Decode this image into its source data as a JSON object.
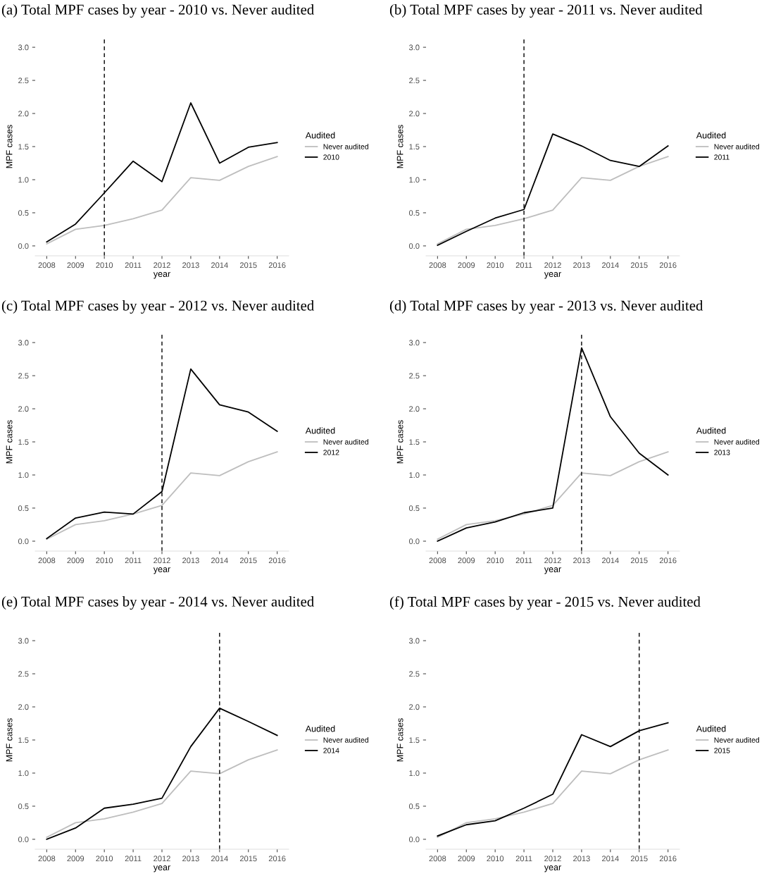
{
  "chart_data": [
    {
      "type": "line",
      "title": "(a) Total MPF cases by year - 2010 vs. Never audited",
      "xlabel": "year",
      "ylabel": "MPF cases",
      "legend_title": "Audited",
      "legend": "right",
      "grid": false,
      "x": [
        2008,
        2009,
        2010,
        2011,
        2012,
        2013,
        2014,
        2015,
        2016
      ],
      "xlim": [
        2007.6,
        2016.4
      ],
      "xticks": [
        2008,
        2009,
        2010,
        2011,
        2012,
        2013,
        2014,
        2015,
        2016
      ],
      "ylim": [
        -0.15,
        3.15
      ],
      "yticks": [
        {
          "value": 0,
          "label": "0.0"
        },
        0.5,
        {
          "value": 1,
          "label": "1.0"
        },
        1.5,
        {
          "value": 2,
          "label": "2.0"
        },
        2.5,
        {
          "value": 3,
          "label": "3.0"
        }
      ],
      "ref_lines": [
        {
          "axis": "x",
          "value": 2010,
          "color": "#000000",
          "line_style": "dashed"
        }
      ],
      "series": [
        {
          "name": "Never audited",
          "color": "#bebebe",
          "values": [
            0.03,
            0.25,
            0.31,
            0.41,
            0.54,
            1.03,
            0.99,
            1.2,
            1.35
          ]
        },
        {
          "name": "2010",
          "color": "#000000",
          "values": [
            0.06,
            0.33,
            0.8,
            1.28,
            0.97,
            2.16,
            1.25,
            1.49,
            1.56
          ]
        }
      ]
    },
    {
      "type": "line",
      "title": "(b) Total MPF cases by year - 2011 vs. Never audited",
      "xlabel": "year",
      "ylabel": "MPF cases",
      "legend_title": "Audited",
      "legend": "right",
      "grid": false,
      "x": [
        2008,
        2009,
        2010,
        2011,
        2012,
        2013,
        2014,
        2015,
        2016
      ],
      "xlim": [
        2007.6,
        2016.4
      ],
      "xticks": [
        2008,
        2009,
        2010,
        2011,
        2012,
        2013,
        2014,
        2015,
        2016
      ],
      "ylim": [
        -0.15,
        3.15
      ],
      "yticks": [
        {
          "value": 0,
          "label": "0.0"
        },
        0.5,
        {
          "value": 1,
          "label": "1.0"
        },
        1.5,
        {
          "value": 2,
          "label": "2.0"
        },
        2.5,
        {
          "value": 3,
          "label": "3.0"
        }
      ],
      "ref_lines": [
        {
          "axis": "x",
          "value": 2011,
          "color": "#000000",
          "line_style": "dashed"
        }
      ],
      "series": [
        {
          "name": "Never audited",
          "color": "#bebebe",
          "values": [
            0.03,
            0.25,
            0.31,
            0.41,
            0.54,
            1.03,
            0.99,
            1.2,
            1.35
          ]
        },
        {
          "name": "2011",
          "color": "#000000",
          "values": [
            0.01,
            0.22,
            0.42,
            0.55,
            1.69,
            1.51,
            1.29,
            1.2,
            1.51
          ]
        }
      ]
    },
    {
      "type": "line",
      "title": "(c) Total MPF cases by year - 2012 vs. Never audited",
      "xlabel": "year",
      "ylabel": "MPF cases",
      "legend_title": "Audited",
      "legend": "right",
      "grid": false,
      "x": [
        2008,
        2009,
        2010,
        2011,
        2012,
        2013,
        2014,
        2015,
        2016
      ],
      "xlim": [
        2007.6,
        2016.4
      ],
      "xticks": [
        2008,
        2009,
        2010,
        2011,
        2012,
        2013,
        2014,
        2015,
        2016
      ],
      "ylim": [
        -0.15,
        3.15
      ],
      "yticks": [
        {
          "value": 0,
          "label": "0.0"
        },
        0.5,
        {
          "value": 1,
          "label": "1.0"
        },
        1.5,
        {
          "value": 2,
          "label": "2.0"
        },
        2.5,
        {
          "value": 3,
          "label": "3.0"
        }
      ],
      "ref_lines": [
        {
          "axis": "x",
          "value": 2012,
          "color": "#000000",
          "line_style": "dashed"
        }
      ],
      "series": [
        {
          "name": "Never audited",
          "color": "#bebebe",
          "values": [
            0.03,
            0.25,
            0.31,
            0.41,
            0.54,
            1.03,
            0.99,
            1.2,
            1.35
          ]
        },
        {
          "name": "2012",
          "color": "#000000",
          "values": [
            0.04,
            0.35,
            0.44,
            0.41,
            0.75,
            2.6,
            2.06,
            1.95,
            1.66
          ]
        }
      ]
    },
    {
      "type": "line",
      "title": "(d) Total MPF cases by year - 2013 vs. Never audited",
      "xlabel": "year",
      "ylabel": "MPF cases",
      "legend_title": "Audited",
      "legend": "right",
      "grid": false,
      "x": [
        2008,
        2009,
        2010,
        2011,
        2012,
        2013,
        2014,
        2015,
        2016
      ],
      "xlim": [
        2007.6,
        2016.4
      ],
      "xticks": [
        2008,
        2009,
        2010,
        2011,
        2012,
        2013,
        2014,
        2015,
        2016
      ],
      "ylim": [
        -0.15,
        3.15
      ],
      "yticks": [
        {
          "value": 0,
          "label": "0.0"
        },
        0.5,
        {
          "value": 1,
          "label": "1.0"
        },
        1.5,
        {
          "value": 2,
          "label": "2.0"
        },
        2.5,
        {
          "value": 3,
          "label": "3.0"
        }
      ],
      "ref_lines": [
        {
          "axis": "x",
          "value": 2013,
          "color": "#000000",
          "line_style": "dashed"
        }
      ],
      "series": [
        {
          "name": "Never audited",
          "color": "#bebebe",
          "values": [
            0.03,
            0.25,
            0.31,
            0.41,
            0.54,
            1.03,
            0.99,
            1.2,
            1.35
          ]
        },
        {
          "name": "2013",
          "color": "#000000",
          "values": [
            0.0,
            0.2,
            0.29,
            0.43,
            0.5,
            2.92,
            1.88,
            1.33,
            1.0
          ]
        }
      ]
    },
    {
      "type": "line",
      "title": "(e) Total MPF cases by year - 2014 vs. Never audited",
      "xlabel": "year",
      "ylabel": "MPF cases",
      "legend_title": "Audited",
      "legend": "right",
      "grid": false,
      "x": [
        2008,
        2009,
        2010,
        2011,
        2012,
        2013,
        2014,
        2015,
        2016
      ],
      "xlim": [
        2007.6,
        2016.4
      ],
      "xticks": [
        2008,
        2009,
        2010,
        2011,
        2012,
        2013,
        2014,
        2015,
        2016
      ],
      "ylim": [
        -0.15,
        3.15
      ],
      "yticks": [
        {
          "value": 0,
          "label": "0.0"
        },
        0.5,
        {
          "value": 1,
          "label": "1.0"
        },
        1.5,
        {
          "value": 2,
          "label": "2.0"
        },
        2.5,
        {
          "value": 3,
          "label": "3.0"
        }
      ],
      "ref_lines": [
        {
          "axis": "x",
          "value": 2014,
          "color": "#000000",
          "line_style": "dashed"
        }
      ],
      "series": [
        {
          "name": "Never audited",
          "color": "#bebebe",
          "values": [
            0.03,
            0.25,
            0.31,
            0.41,
            0.54,
            1.03,
            0.99,
            1.2,
            1.35
          ]
        },
        {
          "name": "2014",
          "color": "#000000",
          "values": [
            0.0,
            0.17,
            0.47,
            0.53,
            0.62,
            1.4,
            1.98,
            1.78,
            1.57
          ]
        }
      ]
    },
    {
      "type": "line",
      "title": "(f) Total MPF cases by year - 2015 vs. Never audited",
      "xlabel": "year",
      "ylabel": "MPF cases",
      "legend_title": "Audited",
      "legend": "right",
      "grid": false,
      "x": [
        2008,
        2009,
        2010,
        2011,
        2012,
        2013,
        2014,
        2015,
        2016
      ],
      "xlim": [
        2007.6,
        2016.4
      ],
      "xticks": [
        2008,
        2009,
        2010,
        2011,
        2012,
        2013,
        2014,
        2015,
        2016
      ],
      "ylim": [
        -0.15,
        3.15
      ],
      "yticks": [
        {
          "value": 0,
          "label": "0.0"
        },
        0.5,
        {
          "value": 1,
          "label": "1.0"
        },
        1.5,
        {
          "value": 2,
          "label": "2.0"
        },
        2.5,
        {
          "value": 3,
          "label": "3.0"
        }
      ],
      "ref_lines": [
        {
          "axis": "x",
          "value": 2015,
          "color": "#000000",
          "line_style": "dashed"
        }
      ],
      "series": [
        {
          "name": "Never audited",
          "color": "#bebebe",
          "values": [
            0.03,
            0.25,
            0.31,
            0.41,
            0.54,
            1.03,
            0.99,
            1.2,
            1.35
          ]
        },
        {
          "name": "2015",
          "color": "#000000",
          "values": [
            0.05,
            0.22,
            0.28,
            0.47,
            0.68,
            1.58,
            1.4,
            1.64,
            1.76
          ]
        }
      ]
    }
  ]
}
